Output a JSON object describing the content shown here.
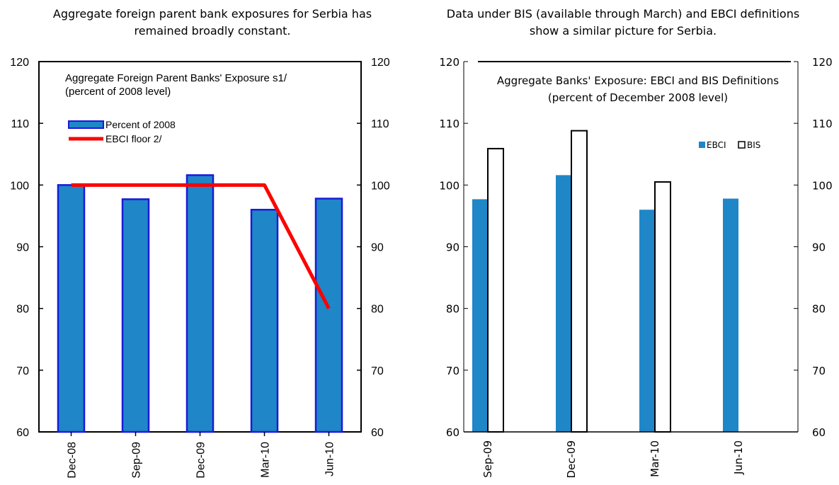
{
  "captions": {
    "left": "Aggregate foreign parent bank exposures for Serbia has remained broadly constant.",
    "right": "Data under BIS (available through March) and EBCI definitions show a similar picture for Serbia."
  },
  "chart_data": [
    {
      "type": "bar",
      "title": "Aggregate Foreign Parent Banks' Exposure s1/",
      "subtitle": "(percent of 2008 level)",
      "categories": [
        "Dec-08",
        "Sep-09",
        "Dec-09",
        "Mar-10",
        "Jun-10"
      ],
      "series": [
        {
          "name": "Percent of 2008",
          "kind": "bar",
          "values": [
            100,
            97.7,
            101.6,
            96,
            97.8
          ],
          "color": "#1f86c8",
          "edge": "#1a1ad8"
        },
        {
          "name": "EBCI floor 2/",
          "kind": "line",
          "values": [
            100,
            100,
            100,
            100,
            80
          ],
          "color": "#ff0000"
        }
      ],
      "ylim": [
        60,
        120
      ],
      "yticks": [
        60,
        70,
        80,
        90,
        100,
        110,
        120
      ],
      "secondary_yaxis": true,
      "grid": false,
      "legend": "top-left"
    },
    {
      "type": "bar",
      "title": "Aggregate Banks' Exposure: EBCI and BIS Definitions",
      "subtitle": "(percent of December 2008 level)",
      "categories": [
        "Sep-09",
        "Dec-09",
        "Mar-10",
        "Jun-10"
      ],
      "series": [
        {
          "name": "EBCI",
          "values": [
            97.7,
            101.6,
            96,
            97.8
          ],
          "color": "#1f86c8"
        },
        {
          "name": "BIS",
          "values": [
            105.9,
            108.8,
            100.5,
            null
          ],
          "color": "#ffffff"
        }
      ],
      "ylim": [
        60,
        120
      ],
      "yticks": [
        60,
        70,
        80,
        90,
        100,
        110,
        120
      ],
      "secondary_yaxis": true,
      "grid": false,
      "legend": "top-right"
    }
  ]
}
